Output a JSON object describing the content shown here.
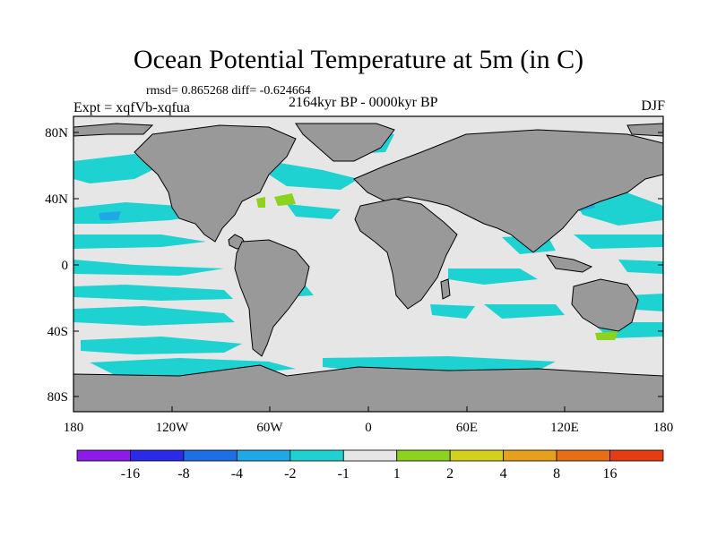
{
  "title": "Ocean Potential Temperature at 5m (in C)",
  "stats": "rmsd= 0.865268 diff= -0.624664",
  "experiment": "Expt = xqfVb-xqfua",
  "period": "2164kyr BP - 0000kyr BP",
  "season": "DJF",
  "lat_labels": [
    "80N",
    "40N",
    "0",
    "40S",
    "80S"
  ],
  "lon_labels": [
    "180",
    "120W",
    "60W",
    "0",
    "60E",
    "120E",
    "180"
  ],
  "colorbar": {
    "colors": [
      "#8a1be8",
      "#2a2ae8",
      "#1e6ee6",
      "#1ea8e6",
      "#1ed2d2",
      "#e6e6e6",
      "#8cd21e",
      "#d2d21e",
      "#e6a01e",
      "#e66e14",
      "#e63c14"
    ],
    "labels": [
      "-16",
      "-8",
      "-4",
      "-2",
      "-1",
      "1",
      "2",
      "4",
      "8",
      "16"
    ]
  },
  "colors": {
    "ocean_neutral": "#e6e6e6",
    "land": "#999999",
    "cool": "#1ed2d2",
    "cooler": "#1ea8e6",
    "warm": "#8cd21e"
  }
}
